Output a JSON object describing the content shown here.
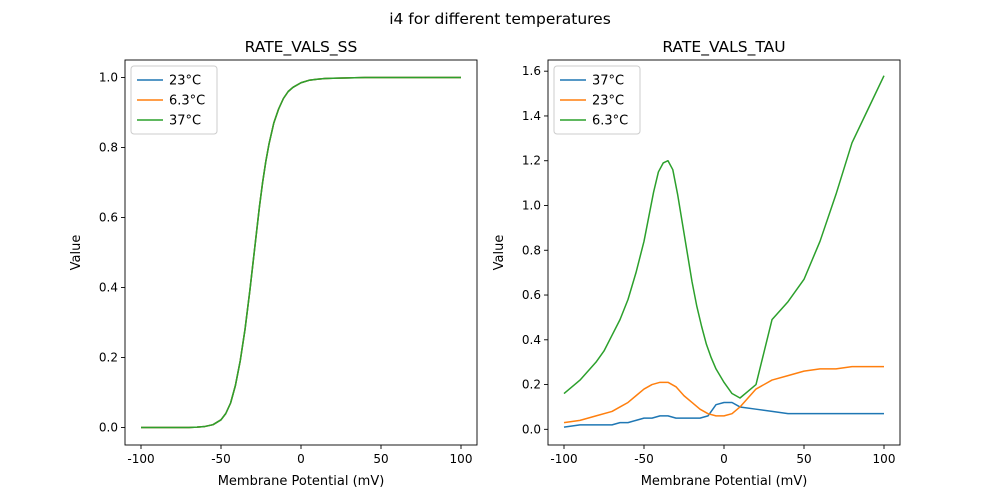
{
  "figure": {
    "suptitle": "i4 for different temperatures"
  },
  "chart_data": [
    {
      "type": "line",
      "title": "RATE_VALS_SS",
      "xlabel": "Membrane Potential (mV)",
      "ylabel": "Value",
      "xlim": [
        -110,
        110
      ],
      "ylim": [
        -0.05,
        1.05
      ],
      "xticks": [
        -100,
        -50,
        0,
        50,
        100
      ],
      "yticks": [
        0.0,
        0.2,
        0.4,
        0.6,
        0.8,
        1.0
      ],
      "ytick_format": 1,
      "legend": "top-left",
      "series": [
        {
          "name": "23°C",
          "color": "#1f77b4",
          "x": [
            -100,
            -90,
            -80,
            -70,
            -65,
            -60,
            -55,
            -50,
            -47,
            -44,
            -41,
            -38,
            -35,
            -32,
            -30,
            -28,
            -26,
            -24,
            -22,
            -20,
            -17,
            -14,
            -11,
            -8,
            -5,
            0,
            5,
            10,
            15,
            20,
            30,
            40,
            50,
            60,
            70,
            80,
            90,
            100
          ],
          "y": [
            0.0,
            0.0,
            0.0,
            0.0,
            0.001,
            0.003,
            0.008,
            0.022,
            0.04,
            0.07,
            0.12,
            0.19,
            0.28,
            0.39,
            0.47,
            0.55,
            0.63,
            0.7,
            0.76,
            0.81,
            0.87,
            0.91,
            0.94,
            0.96,
            0.972,
            0.985,
            0.992,
            0.995,
            0.997,
            0.998,
            0.999,
            1.0,
            1.0,
            1.0,
            1.0,
            1.0,
            1.0,
            1.0
          ]
        },
        {
          "name": "6.3°C",
          "color": "#ff7f0e",
          "x": [
            -100,
            -90,
            -80,
            -70,
            -65,
            -60,
            -55,
            -50,
            -47,
            -44,
            -41,
            -38,
            -35,
            -32,
            -30,
            -28,
            -26,
            -24,
            -22,
            -20,
            -17,
            -14,
            -11,
            -8,
            -5,
            0,
            5,
            10,
            15,
            20,
            30,
            40,
            50,
            60,
            70,
            80,
            90,
            100
          ],
          "y": [
            0.0,
            0.0,
            0.0,
            0.0,
            0.001,
            0.003,
            0.008,
            0.022,
            0.04,
            0.07,
            0.12,
            0.19,
            0.28,
            0.39,
            0.47,
            0.55,
            0.63,
            0.7,
            0.76,
            0.81,
            0.87,
            0.91,
            0.94,
            0.96,
            0.972,
            0.985,
            0.992,
            0.995,
            0.997,
            0.998,
            0.999,
            1.0,
            1.0,
            1.0,
            1.0,
            1.0,
            1.0,
            1.0
          ]
        },
        {
          "name": "37°C",
          "color": "#2ca02c",
          "x": [
            -100,
            -90,
            -80,
            -70,
            -65,
            -60,
            -55,
            -50,
            -47,
            -44,
            -41,
            -38,
            -35,
            -32,
            -30,
            -28,
            -26,
            -24,
            -22,
            -20,
            -17,
            -14,
            -11,
            -8,
            -5,
            0,
            5,
            10,
            15,
            20,
            30,
            40,
            50,
            60,
            70,
            80,
            90,
            100
          ],
          "y": [
            0.0,
            0.0,
            0.0,
            0.0,
            0.001,
            0.003,
            0.008,
            0.022,
            0.04,
            0.07,
            0.12,
            0.19,
            0.28,
            0.39,
            0.47,
            0.55,
            0.63,
            0.7,
            0.76,
            0.81,
            0.87,
            0.91,
            0.94,
            0.96,
            0.972,
            0.985,
            0.992,
            0.995,
            0.997,
            0.998,
            0.999,
            1.0,
            1.0,
            1.0,
            1.0,
            1.0,
            1.0,
            1.0
          ]
        }
      ]
    },
    {
      "type": "line",
      "title": "RATE_VALS_TAU",
      "xlabel": "Membrane Potential (mV)",
      "ylabel": "Value",
      "xlim": [
        -110,
        110
      ],
      "ylim": [
        -0.07,
        1.65
      ],
      "xticks": [
        -100,
        -50,
        0,
        50,
        100
      ],
      "yticks": [
        0.0,
        0.2,
        0.4,
        0.6,
        0.8,
        1.0,
        1.2,
        1.4,
        1.6
      ],
      "ytick_format": 1,
      "legend": "top-left",
      "series": [
        {
          "name": "37°C",
          "color": "#1f77b4",
          "x": [
            -100,
            -90,
            -80,
            -70,
            -65,
            -60,
            -55,
            -50,
            -45,
            -40,
            -35,
            -30,
            -25,
            -20,
            -15,
            -10,
            -5,
            0,
            5,
            10,
            20,
            30,
            40,
            50,
            60,
            70,
            80,
            90,
            100
          ],
          "y": [
            0.01,
            0.02,
            0.02,
            0.02,
            0.03,
            0.03,
            0.04,
            0.05,
            0.05,
            0.06,
            0.06,
            0.05,
            0.05,
            0.05,
            0.05,
            0.06,
            0.11,
            0.12,
            0.12,
            0.1,
            0.09,
            0.08,
            0.07,
            0.07,
            0.07,
            0.07,
            0.07,
            0.07,
            0.07
          ]
        },
        {
          "name": "23°C",
          "color": "#ff7f0e",
          "x": [
            -100,
            -90,
            -80,
            -70,
            -65,
            -60,
            -55,
            -50,
            -45,
            -40,
            -35,
            -30,
            -25,
            -20,
            -15,
            -10,
            -5,
            0,
            5,
            10,
            15,
            20,
            30,
            40,
            50,
            60,
            70,
            80,
            90,
            100
          ],
          "y": [
            0.03,
            0.04,
            0.06,
            0.08,
            0.1,
            0.12,
            0.15,
            0.18,
            0.2,
            0.21,
            0.21,
            0.19,
            0.15,
            0.12,
            0.09,
            0.07,
            0.06,
            0.06,
            0.07,
            0.1,
            0.14,
            0.18,
            0.22,
            0.24,
            0.26,
            0.27,
            0.27,
            0.28,
            0.28,
            0.28
          ]
        },
        {
          "name": "6.3°C",
          "color": "#2ca02c",
          "x": [
            -100,
            -90,
            -80,
            -75,
            -70,
            -65,
            -60,
            -55,
            -50,
            -47,
            -44,
            -41,
            -38,
            -35,
            -32,
            -29,
            -26,
            -23,
            -20,
            -17,
            -14,
            -11,
            -8,
            -5,
            0,
            5,
            10,
            15,
            20,
            30,
            40,
            50,
            60,
            70,
            80,
            90,
            100
          ],
          "y": [
            0.16,
            0.22,
            0.3,
            0.35,
            0.42,
            0.49,
            0.58,
            0.7,
            0.84,
            0.95,
            1.06,
            1.15,
            1.19,
            1.2,
            1.16,
            1.05,
            0.92,
            0.79,
            0.66,
            0.55,
            0.46,
            0.38,
            0.32,
            0.27,
            0.21,
            0.16,
            0.14,
            0.17,
            0.2,
            0.49,
            0.57,
            0.67,
            0.84,
            1.05,
            1.28,
            1.43,
            1.58
          ]
        }
      ]
    }
  ]
}
